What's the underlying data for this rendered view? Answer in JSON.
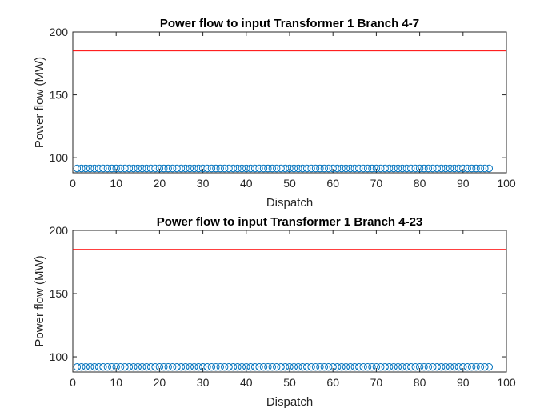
{
  "chart_data": [
    {
      "type": "scatter",
      "title": "Power flow to input Transformer 1 Branch 4-7",
      "xlabel": "Dispatch",
      "ylabel": "Power flow (MW)",
      "xlim": [
        0,
        100
      ],
      "ylim": [
        88,
        200
      ],
      "xticks": [
        0,
        10,
        20,
        30,
        40,
        50,
        60,
        70,
        80,
        90,
        100
      ],
      "yticks": [
        100,
        150,
        200
      ],
      "grid": false,
      "series": [
        {
          "marker": "circle",
          "color": "#0072BD",
          "x_start": 1,
          "x_end": 96,
          "y": 91.5
        }
      ],
      "reference_line": {
        "y": 185,
        "color": "#FF0000"
      }
    },
    {
      "type": "scatter",
      "title": "Power flow to input Transformer 1 Branch 4-23",
      "xlabel": "Dispatch",
      "ylabel": "Power flow (MW)",
      "xlim": [
        0,
        100
      ],
      "ylim": [
        88,
        200
      ],
      "xticks": [
        0,
        10,
        20,
        30,
        40,
        50,
        60,
        70,
        80,
        90,
        100
      ],
      "yticks": [
        100,
        150,
        200
      ],
      "grid": false,
      "series": [
        {
          "marker": "circle",
          "color": "#0072BD",
          "x_start": 1,
          "x_end": 96,
          "y": 92
        }
      ],
      "reference_line": {
        "y": 185,
        "color": "#FF0000"
      }
    }
  ]
}
